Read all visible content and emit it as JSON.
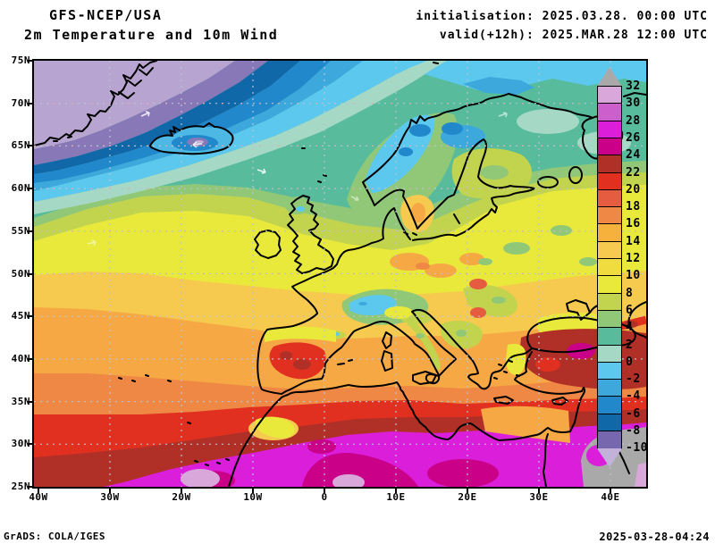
{
  "header": {
    "model": "GFS-NCEP/USA",
    "subtitle": "2m Temperature and 10m Wind",
    "init_line": "initialisation: 2025.03.28. 00:00 UTC",
    "valid_line": "valid(+12h): 2025.MAR.28 12:00 UTC"
  },
  "axes": {
    "lat_labels": [
      "75N",
      "70N",
      "65N",
      "60N",
      "55N",
      "50N",
      "45N",
      "40N",
      "35N",
      "30N",
      "25N"
    ],
    "lon_labels": [
      "40W",
      "30W",
      "20W",
      "10W",
      "0",
      "10E",
      "20E",
      "30E",
      "40E"
    ]
  },
  "colorbar": {
    "boundary_labels": [
      "32",
      "30",
      "28",
      "26",
      "24",
      "22",
      "20",
      "18",
      "16",
      "14",
      "12",
      "10",
      "8",
      "6",
      "4",
      "2",
      "0",
      "-2",
      "-4",
      "-6",
      "-8",
      "-10"
    ],
    "segment_colors_top_to_bottom": [
      "#d9a7d9",
      "#cd5fcd",
      "#da1eda",
      "#ca0088",
      "#b03028",
      "#e23020",
      "#e65c40",
      "#ee8844",
      "#f6b03c",
      "#f6ca4e",
      "#f0dc3e",
      "#e9e93c",
      "#c2d44e",
      "#90c878",
      "#58bc9c",
      "#a6d8c6",
      "#5cc8ee",
      "#3ca8dc",
      "#2288cc",
      "#1068a8",
      "#7767af"
    ],
    "above_max_color": "#a9a9a9",
    "below_min_color": "#c2b1d8"
  },
  "footer": {
    "credit": "GrADS: COLA/IGES",
    "generated": "2025-03-28-04:24"
  }
}
